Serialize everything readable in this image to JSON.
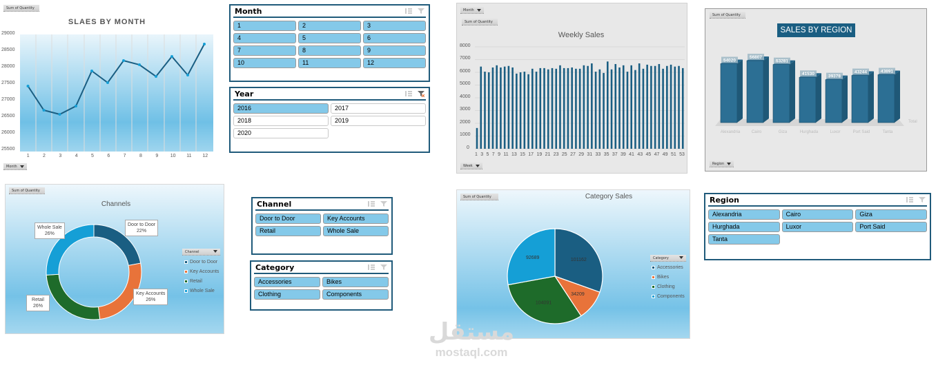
{
  "monthly_chart": {
    "field_button": "Sum of Quantity",
    "title": "SLAES BY MONTH",
    "axis_button": "Month",
    "y_ticks": [
      "29000",
      "28500",
      "28000",
      "27500",
      "27000",
      "26500",
      "26000",
      "25500"
    ],
    "x_ticks": [
      "1",
      "2",
      "3",
      "4",
      "5",
      "6",
      "7",
      "8",
      "9",
      "10",
      "11",
      "12"
    ]
  },
  "month_slicer": {
    "title": "Month",
    "items": [
      "1",
      "2",
      "3",
      "4",
      "5",
      "6",
      "7",
      "8",
      "9",
      "10",
      "11",
      "12"
    ]
  },
  "year_slicer": {
    "title": "Year",
    "items": [
      "2016",
      "2017",
      "2018",
      "2019",
      "2020"
    ],
    "selected": "2016"
  },
  "weekly_chart": {
    "filter_button": "Month",
    "field_button": "Sum of Quantity",
    "title": "Weekly Sales",
    "axis_button": "Week",
    "y_ticks": [
      "8000",
      "7000",
      "6000",
      "5000",
      "4000",
      "3000",
      "2000",
      "1000",
      "0"
    ],
    "x_ticks": [
      "1",
      "3",
      "5",
      "7",
      "9",
      "11",
      "13",
      "15",
      "17",
      "19",
      "21",
      "23",
      "25",
      "27",
      "29",
      "31",
      "33",
      "35",
      "37",
      "39",
      "41",
      "43",
      "45",
      "47",
      "49",
      "51",
      "53"
    ]
  },
  "region_chart": {
    "field_button": "Sum of Quantity",
    "title": "SALES BY REGION",
    "axis_button": "Region",
    "total_label": "Total"
  },
  "channels_chart": {
    "field_button": "Sum of Quantity",
    "title": "Channels",
    "legend_button": "Channel",
    "callouts": [
      {
        "name": "Door to Door",
        "pct": "22%"
      },
      {
        "name": "Key Accounts",
        "pct": "26%"
      },
      {
        "name": "Retail",
        "pct": "26%"
      },
      {
        "name": "Whole Sale",
        "pct": "26%"
      }
    ]
  },
  "channel_slicer": {
    "title": "Channel",
    "items": [
      "Door to Door",
      "Key Accounts",
      "Retail",
      "Whole Sale"
    ]
  },
  "category_slicer": {
    "title": "Category",
    "items": [
      "Accessories",
      "Bikes",
      "Clothing",
      "Components"
    ]
  },
  "category_chart": {
    "field_button": "Sum of Quantity",
    "title": "Category Sales",
    "legend_button": "Category"
  },
  "region_slicer": {
    "title": "Region",
    "items": [
      "Alexandria",
      "Cairo",
      "Giza",
      "Hurghada",
      "Luxor",
      "Port Said",
      "Tanta"
    ]
  },
  "watermark": {
    "arabic": "مستقل",
    "latin": "mostaql.com"
  },
  "colors": {
    "dark_blue": "#1a5e82",
    "orange": "#e8733a",
    "green": "#1e6b2a",
    "light_blue": "#159fd6",
    "slicer_selected": "#84c9e9",
    "slicer_border": "#1f5a7a"
  },
  "chart_data": [
    {
      "type": "line",
      "title": "SLAES BY MONTH",
      "xlabel": "Month",
      "ylabel": "Sum of Quantity",
      "categories": [
        "1",
        "2",
        "3",
        "4",
        "5",
        "6",
        "7",
        "8",
        "9",
        "10",
        "11",
        "12"
      ],
      "values": [
        27430,
        26720,
        26590,
        26830,
        27910,
        27560,
        28220,
        28110,
        27760,
        28350,
        27790,
        28710
      ],
      "ylim": [
        25500,
        29000
      ],
      "grid": "vertical"
    },
    {
      "type": "bar",
      "title": "Weekly Sales",
      "xlabel": "Week",
      "ylabel": "Sum of Quantity",
      "categories": [
        "1",
        "2",
        "3",
        "4",
        "5",
        "6",
        "7",
        "8",
        "9",
        "10",
        "11",
        "12",
        "13",
        "14",
        "15",
        "16",
        "17",
        "18",
        "19",
        "20",
        "21",
        "22",
        "23",
        "24",
        "25",
        "26",
        "27",
        "28",
        "29",
        "30",
        "31",
        "32",
        "33",
        "34",
        "35",
        "36",
        "37",
        "38",
        "39",
        "40",
        "41",
        "42",
        "43",
        "44",
        "45",
        "46",
        "47",
        "48",
        "49",
        "50",
        "51",
        "52",
        "53"
      ],
      "values": [
        1630,
        6450,
        6050,
        6000,
        6380,
        6550,
        6380,
        6450,
        6500,
        6380,
        5900,
        6000,
        6050,
        5850,
        6280,
        6050,
        6330,
        6330,
        6230,
        6330,
        6280,
        6550,
        6330,
        6330,
        6380,
        6280,
        6280,
        6550,
        6500,
        6700,
        6050,
        6230,
        5950,
        6850,
        6230,
        6650,
        6380,
        6550,
        6050,
        6550,
        6180,
        6700,
        6280,
        6600,
        6500,
        6500,
        6650,
        6280,
        6500,
        6600,
        6450,
        6500,
        6330
      ],
      "ylim": [
        0,
        8000
      ],
      "grid": "horizontal"
    },
    {
      "type": "bar",
      "title": "SALES BY REGION",
      "xlabel": "Region",
      "ylabel": "Sum of Quantity",
      "categories": [
        "Alexandria",
        "Cairo",
        "Giza",
        "Hurghada",
        "Luxor",
        "Port Said",
        "Tanta"
      ],
      "values": [
        54020,
        56807,
        53281,
        41530,
        39378,
        43244,
        43891
      ],
      "series": [
        {
          "name": "Total",
          "values": [
            54020,
            56807,
            53281,
            41530,
            39378,
            43244,
            43891
          ]
        }
      ]
    },
    {
      "type": "pie",
      "title": "Channels",
      "variant": "donut",
      "categories": [
        "Door to Door",
        "Key Accounts",
        "Retail",
        "Whole Sale"
      ],
      "values": [
        22,
        26,
        26,
        26
      ],
      "unit": "%",
      "legend_position": "right"
    },
    {
      "type": "pie",
      "title": "Category Sales",
      "categories": [
        "Accessories",
        "Bikes",
        "Clothing",
        "Components"
      ],
      "values": [
        101162,
        34209,
        104091,
        92689
      ],
      "legend_position": "right"
    }
  ]
}
